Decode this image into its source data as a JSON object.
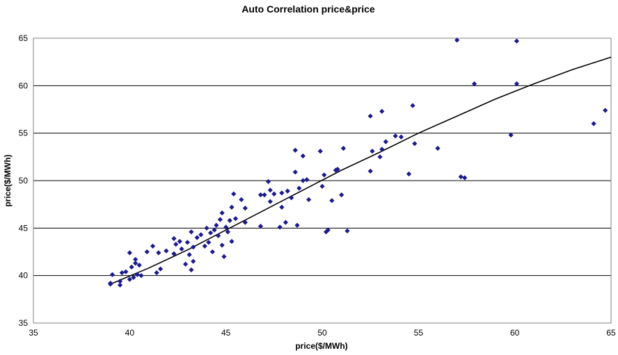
{
  "chart_data": {
    "type": "scatter",
    "title": "Auto Correlation price&price",
    "xlabel": "price($/MWh)",
    "ylabel": "price($/MWh)",
    "xlim": [
      35,
      65
    ],
    "ylim": [
      35,
      65
    ],
    "xticks": [
      35,
      40,
      45,
      50,
      55,
      60,
      65
    ],
    "yticks": [
      35,
      40,
      45,
      50,
      55,
      60,
      65
    ],
    "grid": "horizontal",
    "legend": "none",
    "colors": {
      "points": "#1a1a8c",
      "trend": "#000000",
      "grid": "#000000"
    },
    "trendline": {
      "type": "polynomial",
      "points": [
        [
          39,
          39.1
        ],
        [
          41,
          40.8
        ],
        [
          43,
          42.7
        ],
        [
          45,
          44.8
        ],
        [
          47,
          46.9
        ],
        [
          49,
          49.0
        ],
        [
          51,
          51.1
        ],
        [
          53,
          53.0
        ],
        [
          55,
          55.0
        ],
        [
          57,
          56.8
        ],
        [
          59,
          58.6
        ],
        [
          61,
          60.2
        ],
        [
          63,
          61.7
        ],
        [
          65,
          63.0
        ]
      ]
    },
    "series": [
      {
        "points": [
          [
            39.0,
            39.1
          ],
          [
            39.0,
            39.2
          ],
          [
            39.5,
            39.0
          ],
          [
            39.5,
            39.4
          ],
          [
            39.1,
            40.1
          ],
          [
            39.6,
            40.3
          ],
          [
            39.8,
            40.4
          ],
          [
            40.0,
            39.6
          ],
          [
            40.2,
            39.8
          ],
          [
            40.4,
            40.1
          ],
          [
            40.6,
            40.0
          ],
          [
            40.1,
            40.9
          ],
          [
            40.3,
            41.3
          ],
          [
            40.5,
            41.1
          ],
          [
            40.3,
            41.7
          ],
          [
            40.0,
            42.4
          ],
          [
            40.9,
            42.5
          ],
          [
            41.2,
            43.1
          ],
          [
            41.5,
            42.4
          ],
          [
            41.6,
            40.7
          ],
          [
            41.4,
            40.3
          ],
          [
            41.9,
            42.6
          ],
          [
            42.3,
            42.3
          ],
          [
            42.4,
            43.3
          ],
          [
            42.3,
            43.9
          ],
          [
            42.6,
            43.6
          ],
          [
            42.7,
            42.8
          ],
          [
            42.9,
            41.2
          ],
          [
            43.1,
            42.2
          ],
          [
            43.3,
            41.5
          ],
          [
            43.2,
            40.6
          ],
          [
            43.0,
            43.5
          ],
          [
            43.3,
            43.0
          ],
          [
            43.2,
            44.6
          ],
          [
            43.5,
            44.0
          ],
          [
            43.7,
            44.3
          ],
          [
            43.9,
            43.1
          ],
          [
            44.0,
            45.0
          ],
          [
            44.2,
            44.5
          ],
          [
            44.1,
            43.5
          ],
          [
            44.3,
            42.5
          ],
          [
            44.4,
            44.8
          ],
          [
            44.5,
            45.3
          ],
          [
            44.6,
            44.2
          ],
          [
            44.7,
            45.9
          ],
          [
            44.8,
            46.6
          ],
          [
            44.8,
            43.2
          ],
          [
            44.9,
            42.0
          ],
          [
            45.0,
            45.1
          ],
          [
            45.1,
            44.6
          ],
          [
            45.2,
            45.8
          ],
          [
            45.3,
            43.6
          ],
          [
            45.4,
            48.6
          ],
          [
            45.5,
            46.0
          ],
          [
            45.3,
            47.2
          ],
          [
            45.8,
            48.0
          ],
          [
            46.0,
            47.1
          ],
          [
            46.0,
            45.6
          ],
          [
            46.8,
            48.5
          ],
          [
            46.8,
            45.2
          ],
          [
            47.0,
            48.5
          ],
          [
            47.2,
            49.9
          ],
          [
            47.3,
            49.0
          ],
          [
            47.3,
            47.8
          ],
          [
            47.5,
            48.6
          ],
          [
            47.9,
            48.7
          ],
          [
            47.9,
            47.2
          ],
          [
            47.8,
            45.1
          ],
          [
            48.1,
            45.6
          ],
          [
            48.2,
            48.9
          ],
          [
            48.4,
            48.2
          ],
          [
            48.6,
            50.9
          ],
          [
            48.6,
            53.2
          ],
          [
            48.8,
            49.2
          ],
          [
            48.7,
            45.3
          ],
          [
            49.0,
            52.6
          ],
          [
            49.0,
            50.0
          ],
          [
            49.2,
            50.1
          ],
          [
            49.3,
            48.0
          ],
          [
            49.9,
            53.1
          ],
          [
            50.0,
            49.4
          ],
          [
            50.1,
            50.6
          ],
          [
            50.2,
            44.6
          ],
          [
            50.3,
            44.8
          ],
          [
            50.5,
            47.9
          ],
          [
            50.7,
            51.1
          ],
          [
            50.8,
            51.2
          ],
          [
            51.0,
            48.5
          ],
          [
            51.1,
            53.4
          ],
          [
            51.3,
            44.7
          ],
          [
            52.5,
            56.8
          ],
          [
            52.6,
            53.1
          ],
          [
            52.5,
            51.0
          ],
          [
            53.0,
            52.5
          ],
          [
            53.1,
            53.3
          ],
          [
            53.1,
            57.3
          ],
          [
            53.3,
            54.1
          ],
          [
            53.8,
            54.7
          ],
          [
            54.1,
            54.6
          ],
          [
            54.5,
            50.7
          ],
          [
            54.7,
            57.9
          ],
          [
            54.8,
            53.9
          ],
          [
            56.0,
            53.4
          ],
          [
            57.0,
            64.8
          ],
          [
            57.2,
            50.4
          ],
          [
            57.4,
            50.3
          ],
          [
            57.9,
            60.2
          ],
          [
            59.8,
            54.8
          ],
          [
            60.1,
            60.2
          ],
          [
            60.1,
            64.7
          ],
          [
            64.1,
            56.0
          ],
          [
            64.7,
            57.4
          ]
        ]
      }
    ]
  }
}
